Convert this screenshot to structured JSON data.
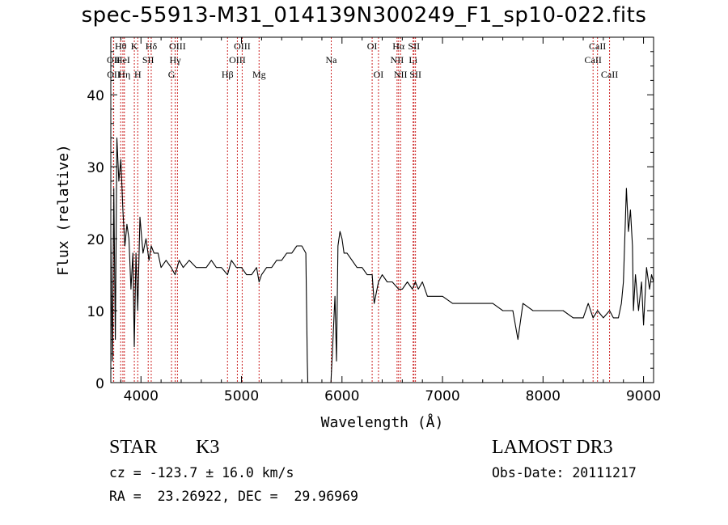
{
  "header": {
    "title": "spec-55913-M31_014139N300249_F1_sp10-022.fits"
  },
  "info": {
    "classification": "STAR",
    "subclass": "K3",
    "survey": "LAMOST DR3",
    "velocity": "cz = -123.7 ± 16.0 km/s",
    "obs_date": "Obs-Date: 20111217",
    "coords": "RA =  23.26922, DEC =  29.96969"
  },
  "chart_data": {
    "type": "line",
    "title": "spec-55913-M31_014139N300249_F1_sp10-022.fits",
    "xlabel": "Wavelength (Å)",
    "ylabel": "Flux (relative)",
    "xlim": [
      3700,
      9100
    ],
    "ylim": [
      0,
      48
    ],
    "x_ticks": [
      4000,
      5000,
      6000,
      7000,
      8000,
      9000
    ],
    "y_ticks": [
      0,
      10,
      20,
      30,
      40
    ],
    "line_color": "#000000",
    "marker_color": "#cc2222",
    "series": [
      {
        "x": [
          3700,
          3715,
          3730,
          3745,
          3760,
          3780,
          3800,
          3820,
          3840,
          3860,
          3880,
          3900,
          3920,
          3933,
          3950,
          3968,
          3990,
          4020,
          4050,
          4080,
          4102,
          4130,
          4170,
          4200,
          4250,
          4300,
          4340,
          4380,
          4420,
          4480,
          4550,
          4600,
          4650,
          4700,
          4750,
          4800,
          4861,
          4900,
          4950,
          5000,
          5050,
          5100,
          5150,
          5175,
          5200,
          5250,
          5300,
          5350,
          5400,
          5450,
          5500,
          5550,
          5600,
          5640,
          5655,
          5660,
          5670,
          5700,
          5800,
          5890,
          5900,
          5930,
          5945,
          5960,
          5980,
          6000,
          6020,
          6050,
          6100,
          6150,
          6200,
          6250,
          6300,
          6320,
          6363,
          6400,
          6450,
          6500,
          6563,
          6600,
          6650,
          6700,
          6730,
          6760,
          6800,
          6850,
          6900,
          6950,
          7000,
          7100,
          7200,
          7300,
          7400,
          7500,
          7600,
          7700,
          7750,
          7800,
          7900,
          8000,
          8100,
          8200,
          8300,
          8400,
          8450,
          8498,
          8542,
          8600,
          8662,
          8700,
          8750,
          8780,
          8800,
          8830,
          8850,
          8870,
          8890,
          8900,
          8920,
          8950,
          8980,
          9000,
          9030,
          9060,
          9080,
          9100
        ],
        "y": [
          20,
          3,
          27,
          6,
          34,
          28,
          31,
          24,
          19,
          22,
          20,
          13,
          18,
          5,
          18,
          10,
          23,
          18,
          20,
          17,
          19,
          18,
          18,
          16,
          17,
          16,
          15,
          17,
          16,
          17,
          16,
          16,
          16,
          17,
          16,
          16,
          15,
          17,
          16,
          16,
          15,
          15,
          16,
          14,
          15,
          16,
          16,
          17,
          17,
          18,
          18,
          19,
          19,
          18,
          3,
          0,
          0,
          0,
          0,
          0,
          3,
          12,
          3,
          19,
          21,
          20,
          18,
          18,
          17,
          16,
          16,
          15,
          15,
          11,
          14,
          15,
          14,
          14,
          13,
          13,
          14,
          13,
          14,
          13,
          14,
          12,
          12,
          12,
          12,
          11,
          11,
          11,
          11,
          11,
          10,
          10,
          6,
          11,
          10,
          10,
          10,
          10,
          9,
          9,
          11,
          9,
          10,
          9,
          10,
          9,
          9,
          11,
          14,
          27,
          21,
          24,
          19,
          10,
          15,
          10,
          14,
          8,
          16,
          13,
          15,
          14
        ]
      }
    ],
    "lines": [
      {
        "name": "OII",
        "wavelength": 3727,
        "row": 1
      },
      {
        "name": "OII",
        "wavelength": 3729,
        "row": 2
      },
      {
        "name": "Hθ",
        "wavelength": 3798,
        "row": 0
      },
      {
        "name": "HeI",
        "wavelength": 3820,
        "row": 1
      },
      {
        "name": "Hη",
        "wavelength": 3835,
        "row": 2
      },
      {
        "name": "K",
        "wavelength": 3934,
        "row": 0
      },
      {
        "name": "SII",
        "wavelength": 4072,
        "row": 1
      },
      {
        "name": "H",
        "wavelength": 3968,
        "row": 2
      },
      {
        "name": "Hδ",
        "wavelength": 4102,
        "row": 0
      },
      {
        "name": "OIII",
        "wavelength": 4363,
        "row": 0
      },
      {
        "name": "Hγ",
        "wavelength": 4340,
        "row": 1
      },
      {
        "name": "G",
        "wavelength": 4304,
        "row": 2
      },
      {
        "name": "Hβ",
        "wavelength": 4861,
        "row": 2
      },
      {
        "name": "OIII",
        "wavelength": 4959,
        "row": 1
      },
      {
        "name": "OIII",
        "wavelength": 5007,
        "row": 0
      },
      {
        "name": "Mg",
        "wavelength": 5175,
        "row": 2
      },
      {
        "name": "Na",
        "wavelength": 5893,
        "row": 1
      },
      {
        "name": "OI",
        "wavelength": 6300,
        "row": 0
      },
      {
        "name": "OI",
        "wavelength": 6363,
        "row": 2
      },
      {
        "name": "NII",
        "wavelength": 6548,
        "row": 1
      },
      {
        "name": "Hα",
        "wavelength": 6563,
        "row": 0
      },
      {
        "name": "NII",
        "wavelength": 6583,
        "row": 2
      },
      {
        "name": "SII",
        "wavelength": 6716,
        "row": 0
      },
      {
        "name": "Li",
        "wavelength": 6708,
        "row": 1
      },
      {
        "name": "SII",
        "wavelength": 6731,
        "row": 2
      },
      {
        "name": "CaII",
        "wavelength": 8498,
        "row": 1
      },
      {
        "name": "CaII",
        "wavelength": 8542,
        "row": 0
      },
      {
        "name": "CaII",
        "wavelength": 8662,
        "row": 2
      }
    ]
  }
}
